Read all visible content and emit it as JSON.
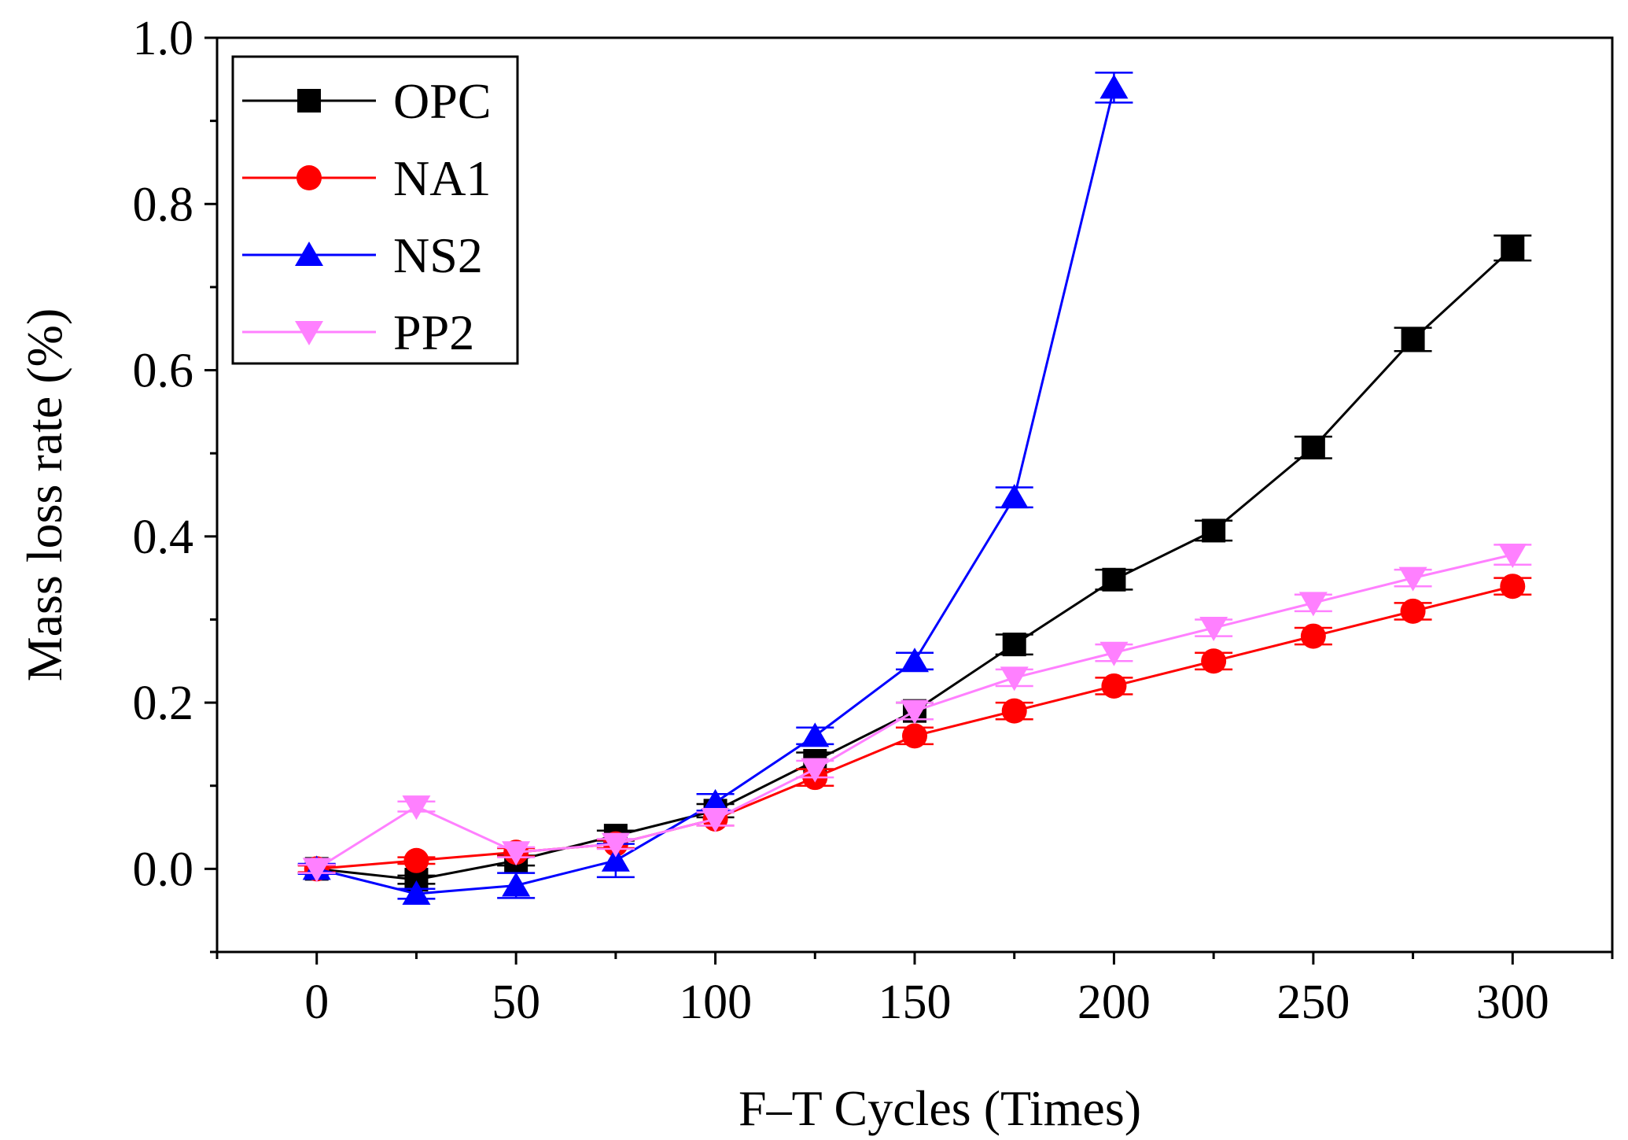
{
  "chart_data": {
    "type": "line",
    "title": "",
    "xlabel": "F–T Cycles (Times)",
    "ylabel": "Mass loss rate (%)",
    "xlim": [
      -25,
      325
    ],
    "ylim": [
      -0.1,
      1.0
    ],
    "xticks": [
      0,
      50,
      100,
      150,
      200,
      250,
      300
    ],
    "xtick_labels": [
      "0",
      "50",
      "100",
      "150",
      "200",
      "250",
      "300"
    ],
    "yticks": [
      0.0,
      0.2,
      0.4,
      0.6,
      0.8,
      1.0
    ],
    "ytick_labels": [
      "0.0",
      "0.2",
      "0.4",
      "0.6",
      "0.8",
      "1.0"
    ],
    "grid": false,
    "legend_position": "top-left",
    "series": [
      {
        "name": "OPC",
        "color": "#000000",
        "marker": "square",
        "x": [
          0,
          25,
          50,
          75,
          100,
          125,
          150,
          175,
          200,
          225,
          250,
          275,
          300
        ],
        "values": [
          0.0,
          -0.013,
          0.01,
          0.04,
          0.07,
          0.13,
          0.19,
          0.27,
          0.348,
          0.407,
          0.507,
          0.637,
          0.747
        ],
        "errors": [
          0.005,
          0.005,
          0.006,
          0.006,
          0.008,
          0.01,
          0.01,
          0.012,
          0.012,
          0.012,
          0.013,
          0.014,
          0.015
        ]
      },
      {
        "name": "NA1",
        "color": "#ff0000",
        "marker": "circle",
        "x": [
          0,
          25,
          50,
          75,
          100,
          125,
          150,
          175,
          200,
          225,
          250,
          275,
          300
        ],
        "values": [
          0.0,
          0.01,
          0.02,
          0.03,
          0.06,
          0.11,
          0.16,
          0.19,
          0.22,
          0.25,
          0.28,
          0.31,
          0.34
        ],
        "errors": [
          0.004,
          0.004,
          0.005,
          0.005,
          0.008,
          0.01,
          0.01,
          0.01,
          0.01,
          0.01,
          0.01,
          0.01,
          0.01
        ]
      },
      {
        "name": "NS2",
        "color": "#0000ff",
        "marker": "triangle-up",
        "x": [
          0,
          25,
          50,
          75,
          100,
          125,
          150,
          175,
          200
        ],
        "values": [
          0.0,
          -0.03,
          -0.02,
          0.01,
          0.08,
          0.16,
          0.25,
          0.447,
          0.94
        ],
        "errors": [
          0.006,
          0.006,
          0.015,
          0.02,
          0.01,
          0.01,
          0.01,
          0.012,
          0.018
        ]
      },
      {
        "name": "PP2",
        "color": "#ff80ff",
        "marker": "triangle-down",
        "x": [
          0,
          25,
          50,
          75,
          100,
          125,
          150,
          175,
          200,
          225,
          250,
          275,
          300
        ],
        "values": [
          0.0,
          0.075,
          0.02,
          0.03,
          0.06,
          0.12,
          0.19,
          0.23,
          0.26,
          0.29,
          0.32,
          0.35,
          0.378
        ],
        "errors": [
          0.005,
          0.006,
          0.006,
          0.006,
          0.008,
          0.01,
          0.01,
          0.01,
          0.01,
          0.01,
          0.01,
          0.01,
          0.012
        ]
      }
    ]
  }
}
